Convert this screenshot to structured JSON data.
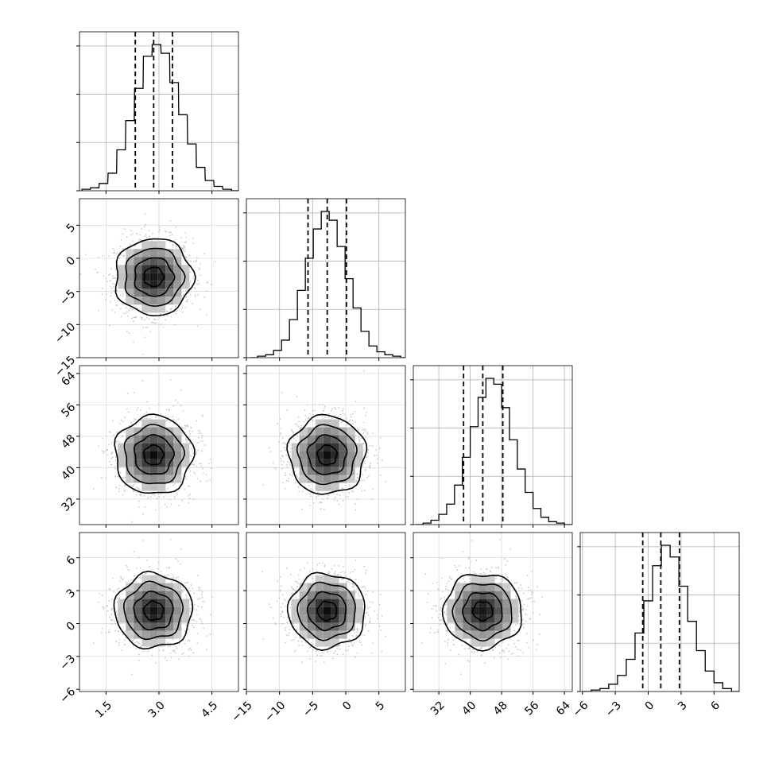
{
  "chart_data": {
    "type": "corner",
    "n_params": 4,
    "colors": {
      "line": "#000000",
      "grid": "#b0b0b0",
      "scatter": "#bdbdbd",
      "background": "#ffffff"
    },
    "grid": true,
    "params": [
      {
        "range": [
          0.75,
          5.25
        ],
        "ticks": [
          1.5,
          3.0,
          4.5
        ],
        "tick_labels": [
          "1.5",
          "3.0",
          "4.5"
        ],
        "mean": 2.85,
        "sd": 0.55,
        "quantiles": [
          2.33,
          2.85,
          3.38
        ],
        "hist_bins": [
          0.82,
          1.06,
          1.31,
          1.56,
          1.81,
          2.06,
          2.31,
          2.56,
          2.81,
          3.06,
          3.31,
          3.56,
          3.81,
          4.06,
          4.31,
          4.56,
          4.81,
          5.06
        ],
        "hist_counts": [
          1,
          2,
          5,
          12,
          28,
          48,
          70,
          92,
          100,
          94,
          74,
          52,
          32,
          16,
          7,
          3,
          1,
          0
        ]
      },
      {
        "range": [
          -15,
          9
        ],
        "ticks": [
          -15,
          -10,
          -5,
          0,
          5
        ],
        "tick_labels": [
          "−15",
          "−10",
          "−5",
          "0",
          "5"
        ],
        "mean": -2.8,
        "sd": 2.9,
        "quantiles": [
          -5.7,
          -2.8,
          0.1
        ],
        "hist_bins": [
          -14.5,
          -13.3,
          -12.1,
          -10.9,
          -9.7,
          -8.5,
          -7.3,
          -6.1,
          -4.9,
          -3.7,
          -2.5,
          -1.3,
          -0.1,
          1.1,
          2.3,
          3.5,
          4.7,
          5.9,
          7.1,
          8.3
        ],
        "hist_counts": [
          0,
          1,
          2,
          5,
          12,
          26,
          46,
          68,
          88,
          100,
          94,
          76,
          54,
          34,
          18,
          8,
          4,
          2,
          1,
          0
        ]
      },
      {
        "range": [
          25.5,
          66
        ],
        "ticks": [
          32,
          40,
          48,
          56,
          64
        ],
        "tick_labels": [
          "32",
          "40",
          "48",
          "56",
          "64"
        ],
        "mean": 43.2,
        "sd": 5.0,
        "quantiles": [
          38.3,
          43.2,
          48.3
        ],
        "hist_bins": [
          26.0,
          28.0,
          30.0,
          32.0,
          34.0,
          36.0,
          38.0,
          40.0,
          42.0,
          44.0,
          46.0,
          48.0,
          50.0,
          52.0,
          54.0,
          56.0,
          58.0,
          60.0,
          62.0,
          64.0
        ],
        "hist_counts": [
          0,
          1,
          3,
          7,
          14,
          27,
          46,
          67,
          87,
          100,
          96,
          80,
          58,
          38,
          22,
          11,
          5,
          2,
          1,
          0
        ]
      },
      {
        "range": [
          -6.2,
          8.3
        ],
        "ticks": [
          -6,
          -3,
          0,
          3,
          6
        ],
        "tick_labels": [
          "−6",
          "−3",
          "0",
          "3",
          "6"
        ],
        "mean": 1.15,
        "sd": 1.7,
        "quantiles": [
          -0.5,
          1.15,
          2.85
        ],
        "hist_bins": [
          -6.0,
          -5.2,
          -4.4,
          -3.6,
          -2.8,
          -2.0,
          -1.2,
          -0.4,
          0.4,
          1.2,
          2.0,
          2.8,
          3.6,
          4.4,
          5.2,
          6.0,
          6.8,
          7.6
        ],
        "hist_counts": [
          0,
          1,
          2,
          5,
          11,
          22,
          40,
          62,
          86,
          100,
          92,
          72,
          48,
          28,
          14,
          6,
          2,
          0
        ]
      }
    ],
    "contour_levels_sigma": [
      0.5,
      1.0,
      1.5,
      2.0
    ],
    "scatter_points_per_panel": 1400
  }
}
